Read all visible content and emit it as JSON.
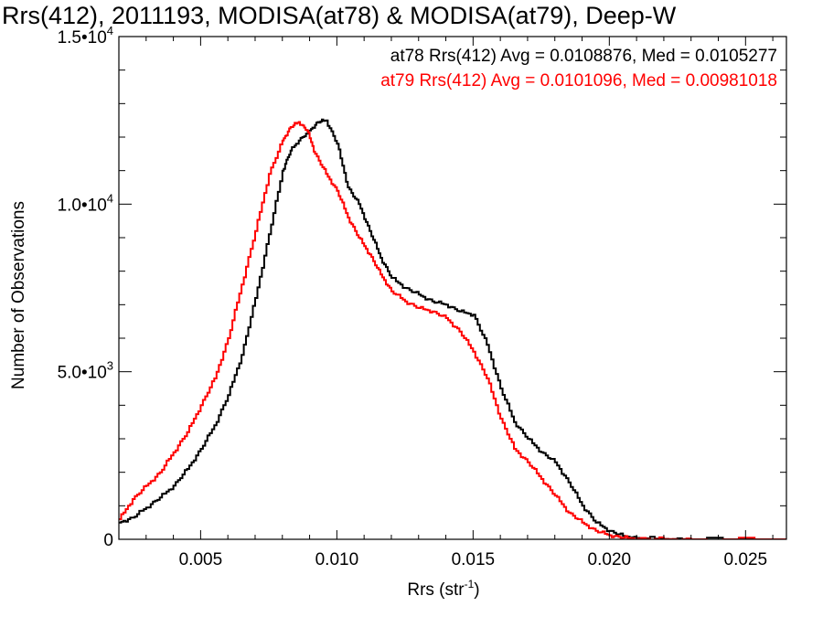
{
  "title": "Rrs(412), 2011193, MODISA(at78) & MODISA(at79), Deep-W",
  "chart_data": {
    "type": "line",
    "title": "Rrs(412), 2011193, MODISA(at78) & MODISA(at79), Deep-W",
    "xlabel": "Rrs (str",
    "xlabel_sup": "-1",
    "xlabel_close": ")",
    "ylabel": "Number of Observations",
    "xlim": [
      0.002,
      0.0265
    ],
    "ylim": [
      0,
      15000
    ],
    "grid": false,
    "legend_position": "top-right",
    "xticks": [
      {
        "value": 0.005,
        "label": "0.005"
      },
      {
        "value": 0.01,
        "label": "0.010"
      },
      {
        "value": 0.015,
        "label": "0.015"
      },
      {
        "value": 0.02,
        "label": "0.020"
      },
      {
        "value": 0.025,
        "label": "0.025"
      }
    ],
    "yticks": [
      {
        "value": 0,
        "label": "0",
        "sup": ""
      },
      {
        "value": 5000,
        "label": "5.0•10",
        "sup": "3"
      },
      {
        "value": 10000,
        "label": "1.0•10",
        "sup": "4"
      },
      {
        "value": 15000,
        "label": "1.5•10",
        "sup": "4"
      }
    ],
    "series": [
      {
        "name": "at78 Rrs(412) Avg = 0.0108876, Med = 0.0105277",
        "color": "#000000",
        "x": [
          0.002,
          0.0025,
          0.003,
          0.0035,
          0.004,
          0.0045,
          0.005,
          0.0055,
          0.006,
          0.0065,
          0.007,
          0.0075,
          0.008,
          0.0083,
          0.0086,
          0.009,
          0.0093,
          0.0096,
          0.01,
          0.0104,
          0.0108,
          0.0112,
          0.0116,
          0.012,
          0.0125,
          0.013,
          0.0135,
          0.014,
          0.0145,
          0.015,
          0.0155,
          0.016,
          0.0165,
          0.017,
          0.0175,
          0.018,
          0.0185,
          0.019,
          0.0195,
          0.02,
          0.0205,
          0.021,
          0.022,
          0.023,
          0.0265
        ],
        "y": [
          500,
          650,
          950,
          1250,
          1600,
          2100,
          2700,
          3400,
          4300,
          5500,
          7200,
          9100,
          11000,
          11600,
          11900,
          12200,
          12450,
          12500,
          11800,
          10500,
          10000,
          9200,
          8400,
          7800,
          7500,
          7300,
          7100,
          7000,
          6800,
          6700,
          5800,
          4500,
          3500,
          3000,
          2600,
          2300,
          1700,
          1000,
          500,
          250,
          100,
          40,
          10,
          0,
          0
        ]
      },
      {
        "name": "at79 Rrs(412) Avg = 0.0101096, Med = 0.00981018",
        "color": "#ff0000",
        "x": [
          0.002,
          0.0025,
          0.003,
          0.0035,
          0.004,
          0.0045,
          0.005,
          0.0055,
          0.006,
          0.0065,
          0.007,
          0.0075,
          0.008,
          0.0083,
          0.0086,
          0.0089,
          0.0092,
          0.0096,
          0.01,
          0.0104,
          0.0108,
          0.0112,
          0.0116,
          0.012,
          0.0125,
          0.013,
          0.0135,
          0.014,
          0.0145,
          0.015,
          0.0155,
          0.016,
          0.0165,
          0.017,
          0.0175,
          0.018,
          0.0185,
          0.019,
          0.0195,
          0.02,
          0.0205,
          0.021,
          0.022,
          0.023,
          0.0265
        ],
        "y": [
          600,
          1200,
          1600,
          2000,
          2600,
          3200,
          4000,
          4800,
          6000,
          7600,
          9200,
          10900,
          11900,
          12300,
          12450,
          12200,
          11500,
          10900,
          10400,
          9600,
          9000,
          8500,
          7900,
          7400,
          7100,
          6900,
          6800,
          6600,
          6200,
          5600,
          4800,
          3600,
          2700,
          2300,
          1800,
          1300,
          800,
          500,
          250,
          120,
          50,
          20,
          5,
          0,
          0
        ]
      }
    ]
  }
}
